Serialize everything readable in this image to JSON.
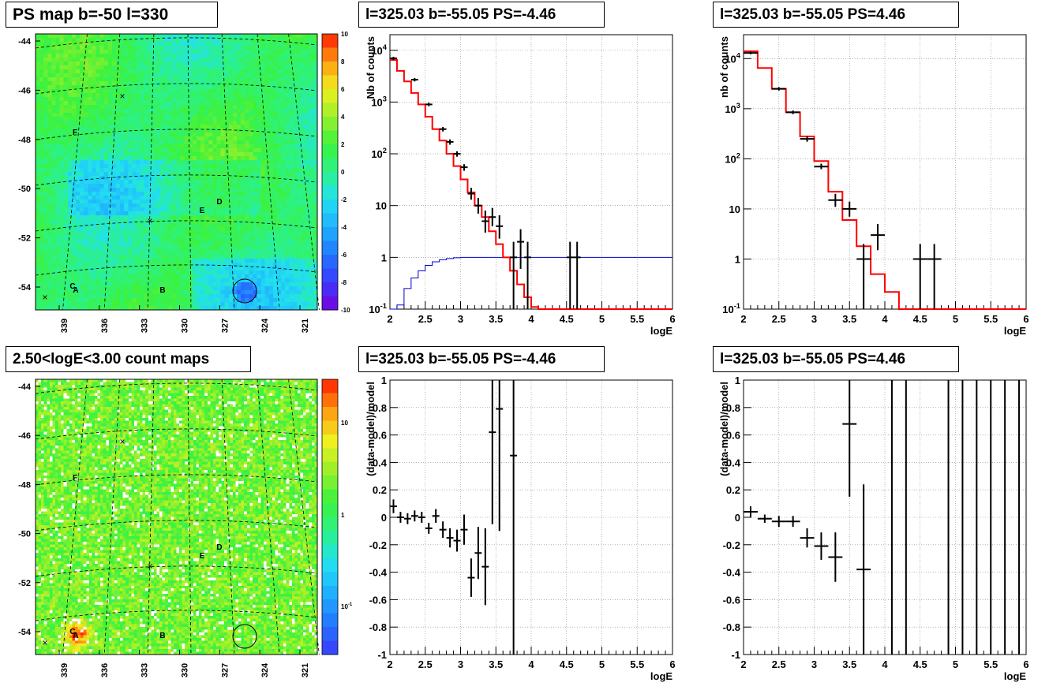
{
  "titles": {
    "ps_map": "PS map b=-50 l=330",
    "count_map": "2.50<logE<3.00 count maps",
    "spec_neg": "l=325.03 b=-55.05 PS=-4.46",
    "spec_pos": "l=325.03 b=-55.05 PS=4.46",
    "res_neg": "l=325.03 b=-55.05 PS=-4.46",
    "res_pos": "l=325.03 b=-55.05 PS=4.46"
  },
  "colors": {
    "model_line": "#ff0000",
    "exposure_line": "#0000cc",
    "points": "#000000",
    "grid": "#888888"
  },
  "chart_data": [
    {
      "id": "ps_map",
      "type": "heatmap",
      "title": "PS map b=-50 l=330",
      "x_ticks": [
        "339",
        "336",
        "333",
        "330",
        "327",
        "324",
        "321"
      ],
      "y_ticks": [
        "-44",
        "-46",
        "-48",
        "-50",
        "-52",
        "-54"
      ],
      "colorbar_ticks": [
        "10",
        "8",
        "6",
        "4",
        "2",
        "0",
        "-2",
        "-4",
        "-6",
        "-8",
        "-10"
      ],
      "source_labels": [
        "A",
        "B",
        "C",
        "D",
        "E",
        "F"
      ]
    },
    {
      "id": "count_map",
      "type": "heatmap",
      "title": "2.50<logE<3.00 count maps",
      "x_ticks": [
        "339",
        "336",
        "333",
        "330",
        "327",
        "324",
        "321"
      ],
      "y_ticks": [
        "-44",
        "-46",
        "-48",
        "-50",
        "-52",
        "-54"
      ],
      "colorbar_ticks": [
        "10",
        "1",
        "10^-1"
      ],
      "source_labels": [
        "A",
        "B",
        "C",
        "D",
        "E",
        "F"
      ]
    },
    {
      "id": "spec_neg",
      "type": "line",
      "title": "l=325.03 b=-55.05 PS=-4.46",
      "xlabel": "logE",
      "ylabel": "Nb of counts",
      "xlim": [
        2,
        6
      ],
      "ylim": [
        0.1,
        20000
      ],
      "log_y": true,
      "x_tick_labels": [
        "2",
        "2.5",
        "3",
        "3.5",
        "4",
        "4.5",
        "5",
        "5.5",
        "6"
      ],
      "y_tick_labels": [
        "10^-1",
        "1",
        "10",
        "10^2",
        "10^3",
        "10^4"
      ],
      "model": {
        "edges": [
          2.0,
          2.1,
          2.2,
          2.3,
          2.4,
          2.5,
          2.6,
          2.7,
          2.8,
          2.9,
          3.0,
          3.1,
          3.2,
          3.3,
          3.4,
          3.5,
          3.6,
          3.7,
          3.8,
          3.9,
          4.0,
          4.1,
          6.0
        ],
        "values": [
          6500,
          4000,
          2500,
          1500,
          900,
          520,
          300,
          180,
          100,
          58,
          32,
          18,
          10,
          6,
          3.2,
          1.8,
          1.0,
          0.55,
          0.3,
          0.17,
          0.11,
          0.1
        ]
      },
      "exposure": {
        "edges": [
          2.0,
          2.1,
          2.2,
          2.3,
          2.4,
          2.5,
          2.6,
          2.7,
          2.8,
          2.9,
          3.0,
          6.0
        ],
        "values": [
          0.06,
          0.12,
          0.25,
          0.4,
          0.55,
          0.7,
          0.82,
          0.9,
          0.95,
          0.98,
          1.0
        ]
      },
      "points": [
        {
          "x": 2.05,
          "y": 7000,
          "lo": 6500,
          "hi": 7500
        },
        {
          "x": 2.35,
          "y": 2700,
          "lo": 2500,
          "hi": 2900
        },
        {
          "x": 2.55,
          "y": 900,
          "lo": 830,
          "hi": 970
        },
        {
          "x": 2.75,
          "y": 300,
          "lo": 270,
          "hi": 330
        },
        {
          "x": 2.85,
          "y": 170,
          "lo": 150,
          "hi": 190
        },
        {
          "x": 2.95,
          "y": 100,
          "lo": 88,
          "hi": 112
        },
        {
          "x": 3.05,
          "y": 55,
          "lo": 47,
          "hi": 63
        },
        {
          "x": 3.15,
          "y": 17,
          "lo": 13,
          "hi": 22
        },
        {
          "x": 3.25,
          "y": 10,
          "lo": 7,
          "hi": 14
        },
        {
          "x": 3.35,
          "y": 5,
          "lo": 3,
          "hi": 8
        },
        {
          "x": 3.45,
          "y": 6,
          "lo": 4,
          "hi": 9
        },
        {
          "x": 3.55,
          "y": 4,
          "lo": 2.3,
          "hi": 6.5
        },
        {
          "x": 3.75,
          "y": 1,
          "lo": 0.1,
          "hi": 2
        },
        {
          "x": 3.85,
          "y": 2,
          "lo": 0.6,
          "hi": 3.5
        },
        {
          "x": 3.95,
          "y": 1,
          "lo": 0.1,
          "hi": 2
        },
        {
          "x": 4.55,
          "y": 1,
          "lo": 0.1,
          "hi": 2
        },
        {
          "x": 4.65,
          "y": 1,
          "lo": 0.1,
          "hi": 2
        }
      ]
    },
    {
      "id": "spec_pos",
      "type": "line",
      "title": "l=325.03 b=-55.05 PS=4.46",
      "xlabel": "logE",
      "ylabel": "nb of counts",
      "xlim": [
        2,
        6
      ],
      "ylim": [
        0.1,
        30000
      ],
      "log_y": true,
      "x_tick_labels": [
        "2",
        "2.5",
        "3",
        "3.5",
        "4",
        "4.5",
        "5",
        "5.5",
        "6"
      ],
      "y_tick_labels": [
        "10^-1",
        "1",
        "10",
        "10^2",
        "10^3",
        "10^4"
      ],
      "model": {
        "edges": [
          2.0,
          2.2,
          2.4,
          2.6,
          2.8,
          3.0,
          3.2,
          3.4,
          3.6,
          3.8,
          4.0,
          4.2,
          6.0
        ],
        "values": [
          14000,
          6500,
          2500,
          850,
          280,
          90,
          22,
          6,
          1.8,
          0.5,
          0.22,
          0.1
        ]
      },
      "points": [
        {
          "x": 2.1,
          "y": 13000,
          "lo": 12200,
          "hi": 13800
        },
        {
          "x": 2.5,
          "y": 2500,
          "lo": 2300,
          "hi": 2700
        },
        {
          "x": 2.7,
          "y": 850,
          "lo": 780,
          "hi": 920
        },
        {
          "x": 2.9,
          "y": 250,
          "lo": 220,
          "hi": 280
        },
        {
          "x": 3.1,
          "y": 70,
          "lo": 62,
          "hi": 80
        },
        {
          "x": 3.3,
          "y": 15,
          "lo": 11,
          "hi": 20
        },
        {
          "x": 3.5,
          "y": 10,
          "lo": 7,
          "hi": 14
        },
        {
          "x": 3.7,
          "y": 1,
          "lo": 0.1,
          "hi": 2
        },
        {
          "x": 3.9,
          "y": 3,
          "lo": 1.5,
          "hi": 5
        },
        {
          "x": 4.5,
          "y": 1,
          "lo": 0.1,
          "hi": 2
        },
        {
          "x": 4.7,
          "y": 1,
          "lo": 0.1,
          "hi": 2
        }
      ]
    },
    {
      "id": "res_neg",
      "type": "scatter",
      "title": "l=325.03 b=-55.05 PS=-4.46",
      "xlabel": "logE",
      "ylabel": "(data-model)/model",
      "xlim": [
        2,
        6
      ],
      "ylim": [
        -1,
        1
      ],
      "x_tick_labels": [
        "2",
        "2.5",
        "3",
        "3.5",
        "4",
        "4.5",
        "5",
        "5.5",
        "6"
      ],
      "y_tick_labels": [
        "-1",
        "-0.8",
        "-0.6",
        "-0.4",
        "-0.2",
        "0",
        "0.2",
        "0.4",
        "0.6",
        "0.8",
        "1"
      ],
      "points": [
        {
          "x": 2.05,
          "y": 0.08,
          "lo": 0.03,
          "hi": 0.13
        },
        {
          "x": 2.15,
          "y": 0.0,
          "lo": -0.04,
          "hi": 0.04
        },
        {
          "x": 2.25,
          "y": -0.01,
          "lo": -0.05,
          "hi": 0.03
        },
        {
          "x": 2.35,
          "y": 0.01,
          "lo": -0.03,
          "hi": 0.05
        },
        {
          "x": 2.45,
          "y": 0.0,
          "lo": -0.04,
          "hi": 0.04
        },
        {
          "x": 2.55,
          "y": -0.08,
          "lo": -0.12,
          "hi": -0.04
        },
        {
          "x": 2.65,
          "y": 0.01,
          "lo": -0.04,
          "hi": 0.06
        },
        {
          "x": 2.75,
          "y": -0.09,
          "lo": -0.15,
          "hi": -0.03
        },
        {
          "x": 2.85,
          "y": -0.15,
          "lo": -0.22,
          "hi": -0.08
        },
        {
          "x": 2.95,
          "y": -0.17,
          "lo": -0.25,
          "hi": -0.09
        },
        {
          "x": 3.05,
          "y": -0.09,
          "lo": -0.2,
          "hi": 0.02
        },
        {
          "x": 3.15,
          "y": -0.44,
          "lo": -0.58,
          "hi": -0.3
        },
        {
          "x": 3.25,
          "y": -0.26,
          "lo": -0.45,
          "hi": -0.07
        },
        {
          "x": 3.35,
          "y": -0.36,
          "lo": -0.64,
          "hi": -0.08
        },
        {
          "x": 3.45,
          "y": 0.62,
          "lo": -0.05,
          "hi": 1.0
        },
        {
          "x": 3.55,
          "y": 0.79,
          "lo": -0.1,
          "hi": 1.0
        },
        {
          "x": 3.75,
          "y": 0.45,
          "lo": -1.0,
          "hi": 1.0
        }
      ]
    },
    {
      "id": "res_pos",
      "type": "scatter",
      "title": "l=325.03 b=-55.05 PS=4.46",
      "xlabel": "logE",
      "ylabel": "(data-model)/model",
      "xlim": [
        2,
        6
      ],
      "ylim": [
        -1,
        1
      ],
      "x_tick_labels": [
        "2",
        "2.5",
        "3",
        "3.5",
        "4",
        "4.5",
        "5",
        "5.5",
        "6"
      ],
      "y_tick_labels": [
        "-1",
        "-0.8",
        "-0.6",
        "-0.4",
        "-0.2",
        "0",
        "0.2",
        "0.4",
        "0.6",
        "0.8",
        "1"
      ],
      "points": [
        {
          "x": 2.1,
          "y": 0.04,
          "lo": 0.0,
          "hi": 0.08
        },
        {
          "x": 2.3,
          "y": -0.01,
          "lo": -0.04,
          "hi": 0.02
        },
        {
          "x": 2.5,
          "y": -0.03,
          "lo": -0.07,
          "hi": 0.01
        },
        {
          "x": 2.7,
          "y": -0.03,
          "lo": -0.07,
          "hi": 0.01
        },
        {
          "x": 2.9,
          "y": -0.15,
          "lo": -0.22,
          "hi": -0.08
        },
        {
          "x": 3.1,
          "y": -0.21,
          "lo": -0.31,
          "hi": -0.11
        },
        {
          "x": 3.3,
          "y": -0.29,
          "lo": -0.47,
          "hi": -0.11
        },
        {
          "x": 3.5,
          "y": 0.68,
          "lo": 0.15,
          "hi": 1.0
        },
        {
          "x": 3.7,
          "y": -0.38,
          "lo": -1.0,
          "hi": 0.24
        },
        {
          "x": 4.1,
          "y": 0.0,
          "lo": -1.0,
          "hi": 1.0
        },
        {
          "x": 4.3,
          "y": 0.0,
          "lo": -1.0,
          "hi": 1.0
        },
        {
          "x": 4.9,
          "y": 0.0,
          "lo": -1.0,
          "hi": 1.0
        },
        {
          "x": 5.1,
          "y": 0.0,
          "lo": -1.0,
          "hi": 1.0
        },
        {
          "x": 5.3,
          "y": 0.0,
          "lo": -1.0,
          "hi": 1.0
        },
        {
          "x": 5.5,
          "y": 0.0,
          "lo": -1.0,
          "hi": 1.0
        },
        {
          "x": 5.7,
          "y": 0.0,
          "lo": -1.0,
          "hi": 1.0
        },
        {
          "x": 5.9,
          "y": 0.0,
          "lo": -1.0,
          "hi": 1.0
        }
      ]
    }
  ]
}
